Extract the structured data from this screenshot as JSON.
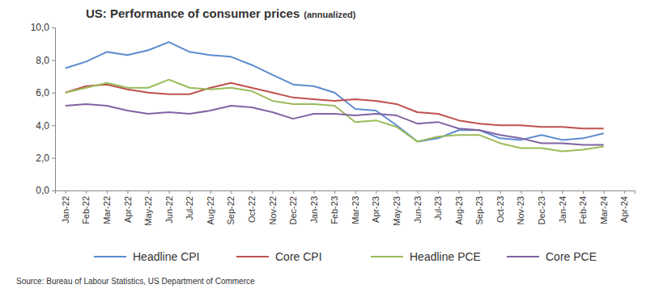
{
  "chart_data": {
    "type": "line",
    "title": "US: Performance of consumer prices",
    "subtitle": "(annualized)",
    "annotations": [
      "Source: Bureau of Labour Statistics, US Department of Commerce"
    ],
    "categories": [
      "Jan-22",
      "Feb-22",
      "Mar-22",
      "Apr-22",
      "May-22",
      "Jun-22",
      "Jul-22",
      "Aug-22",
      "Sep-22",
      "Oct-22",
      "Nov-22",
      "Dec-22",
      "Jan-23",
      "Feb-23",
      "Mar-23",
      "Apr-23",
      "May-23",
      "Jun-23",
      "Jul-23",
      "Aug-23",
      "Sep-23",
      "Oct-23",
      "Nov-23",
      "Dec-23",
      "Jan-24",
      "Feb-24",
      "Mar-24",
      "Apr-24"
    ],
    "series": [
      {
        "name": "Headline CPI",
        "color": "#5b8bd0",
        "values": [
          7.5,
          7.9,
          8.5,
          8.3,
          8.6,
          9.1,
          8.5,
          8.3,
          8.2,
          7.7,
          7.1,
          6.5,
          6.4,
          6.0,
          5.0,
          4.9,
          4.0,
          3.0,
          3.2,
          3.7,
          3.7,
          3.2,
          3.1,
          3.4,
          3.1,
          3.2,
          3.5,
          null
        ]
      },
      {
        "name": "Core CPI",
        "color": "#c0504d",
        "values": [
          6.0,
          6.4,
          6.5,
          6.2,
          6.0,
          5.9,
          5.9,
          6.3,
          6.6,
          6.3,
          6.0,
          5.7,
          5.6,
          5.5,
          5.6,
          5.5,
          5.3,
          4.8,
          4.7,
          4.3,
          4.1,
          4.0,
          4.0,
          3.9,
          3.9,
          3.8,
          3.8,
          null
        ]
      },
      {
        "name": "Headline PCE",
        "color": "#9bbb59",
        "values": [
          6.0,
          6.3,
          6.6,
          6.3,
          6.3,
          6.8,
          6.3,
          6.2,
          6.3,
          6.1,
          5.5,
          5.3,
          5.3,
          5.2,
          4.2,
          4.3,
          3.9,
          3.0,
          3.3,
          3.4,
          3.4,
          2.9,
          2.6,
          2.6,
          2.4,
          2.5,
          2.7,
          null
        ]
      },
      {
        "name": "Core PCE",
        "color": "#8064a2",
        "values": [
          5.2,
          5.3,
          5.2,
          4.9,
          4.7,
          4.8,
          4.7,
          4.9,
          5.2,
          5.1,
          4.8,
          4.4,
          4.7,
          4.7,
          4.6,
          4.7,
          4.6,
          4.1,
          4.2,
          3.8,
          3.7,
          3.4,
          3.2,
          2.9,
          2.9,
          2.8,
          2.8,
          null
        ]
      }
    ],
    "ylim": [
      0,
      10
    ],
    "yticks": [
      {
        "value": 0,
        "label": "0,0"
      },
      {
        "value": 2,
        "label": "2,0"
      },
      {
        "value": 4,
        "label": "4,0"
      },
      {
        "value": 6,
        "label": "6,0"
      },
      {
        "value": 8,
        "label": "8,0"
      },
      {
        "value": 10,
        "label": "10,0"
      }
    ],
    "grid": false,
    "legend": "bottom"
  }
}
